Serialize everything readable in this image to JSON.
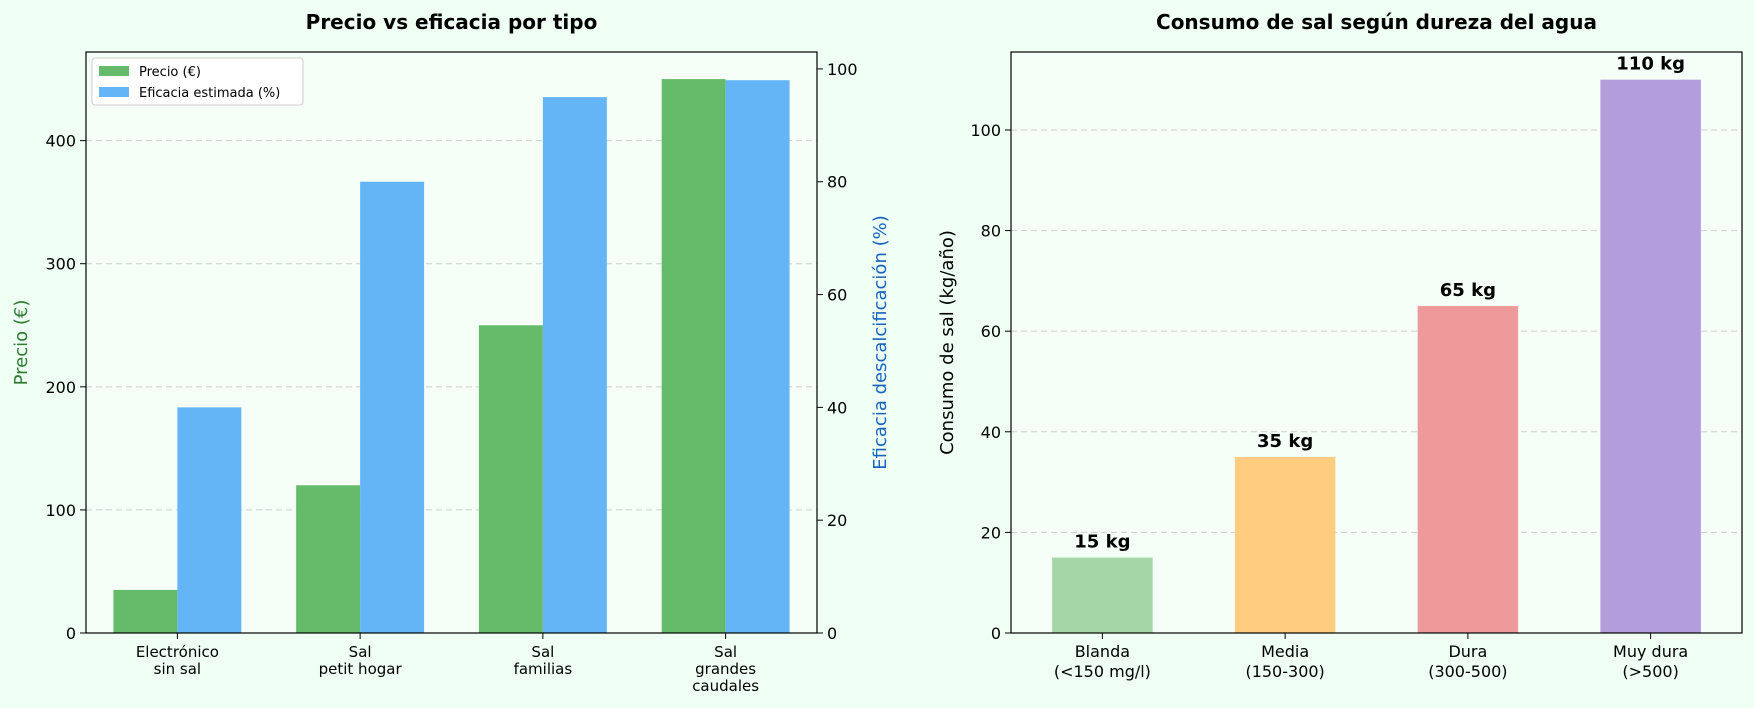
{
  "chart_data": [
    {
      "type": "bar",
      "title": "Precio vs eficacia por tipo",
      "categories": [
        [
          "Electrónico",
          "sin sal"
        ],
        [
          "Sal",
          "petit hogar"
        ],
        [
          "Sal",
          "familias"
        ],
        [
          "Sal",
          "grandes",
          "caudales"
        ]
      ],
      "series": [
        {
          "name": "Precio (€)",
          "axis": "left",
          "color": "#66bb6a",
          "values": [
            35,
            120,
            250,
            450
          ]
        },
        {
          "name": "Eficacia estimada (%)",
          "axis": "right",
          "color": "#64b5f6",
          "values": [
            40,
            80,
            95,
            98
          ]
        }
      ],
      "ylabel": "Precio (€)",
      "ylabel_color": "#2e7d32",
      "ylim": [
        0,
        472
      ],
      "yticks": [
        0,
        100,
        200,
        300,
        400
      ],
      "y2label": "Eficacia descalcificación (%)",
      "y2label_color": "#1565c0",
      "y2lim": [
        0,
        103
      ],
      "y2ticks": [
        0,
        20,
        40,
        60,
        80,
        100
      ],
      "legend": "top-left",
      "grid": true
    },
    {
      "type": "bar",
      "title": "Consumo de sal según dureza del agua",
      "categories": [
        [
          "Blanda",
          "(<150 mg/l)"
        ],
        [
          "Media",
          "(150-300)"
        ],
        [
          "Dura",
          "(300-500)"
        ],
        [
          "Muy dura",
          "(>500)"
        ]
      ],
      "values": [
        15,
        35,
        65,
        110
      ],
      "data_labels": [
        "15 kg",
        "35 kg",
        "65 kg",
        "110 kg"
      ],
      "colors": [
        "#a5d6a7",
        "#ffcc80",
        "#ef9a9a",
        "#b39ddb"
      ],
      "ylabel": "Consumo de sal (kg/año)",
      "ylim": [
        0,
        115.5
      ],
      "yticks": [
        0,
        20,
        40,
        60,
        80,
        100
      ],
      "grid": true
    }
  ]
}
